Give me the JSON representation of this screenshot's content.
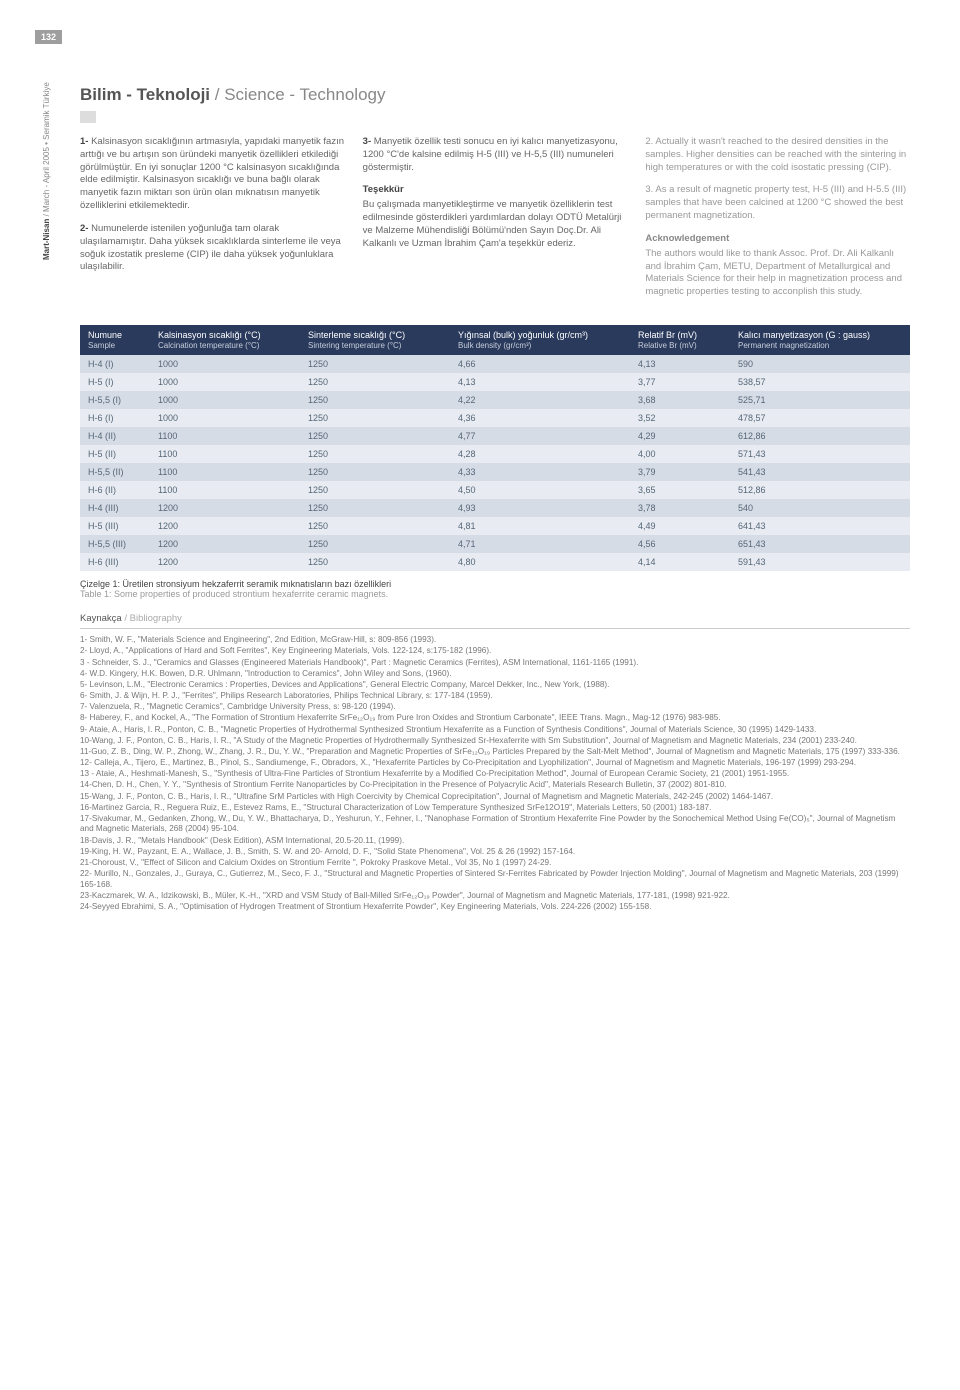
{
  "page_number": "132",
  "side_text_bold": "Mart-Nisan",
  "side_text_rest": " / March - April 2005 • Seramik Türkiye",
  "section_title_bold": "Bilim - Teknoloji",
  "section_title_light": " / Science - Technology",
  "col1": {
    "p1_lead": "1- ",
    "p1": "Kalsinasyon sıcaklığının artmasıyla, yapıdaki manyetik fazın arttığı ve bu artışın son üründeki manyetik özellikleri etkilediği görülmüştür. En iyi sonuçlar 1200 °C kalsinasyon sıcaklığında elde edilmiştir. Kalsinasyon sıcaklığı ve buna bağlı olarak manyetik fazın miktarı son ürün olan mıknatısın manyetik özelliklerini etkilemektedir.",
    "p2_lead": "2- ",
    "p2": "Numunelerde istenilen yoğunluğa tam olarak ulaşılamamıştır. Daha yüksek sıcaklıklarda sinterleme ile veya soğuk izostatik presleme (CIP) ile daha yüksek yoğunluklara ulaşılabilir."
  },
  "col2": {
    "p1_lead": "3- ",
    "p1": "Manyetik özellik testi sonucu en iyi kalıcı manyetizasyonu, 1200 °C'de kalsine edilmiş H-5 (III) ve H-5,5 (III) numuneleri göstermiştir.",
    "h1": "Teşekkür",
    "p2": "Bu çalışmada manyetikleştirme ve manyetik özelliklerin test edilmesinde gösterdikleri yardımlardan dolayı ODTÜ Metalürji ve Malzeme Mühendisliği Bölümü'nden Sayın Doç.Dr. Ali Kalkanlı ve Uzman İbrahim Çam'a teşekkür ederiz."
  },
  "col3": {
    "p1_lead": "2. ",
    "p1": "Actually it wasn't reached to the desired densities in the samples. Higher densities can be reached with the sintering in high temperatures or with the cold isostatic pressing (CIP).",
    "p2_lead": "3. ",
    "p2": "As a result of magnetic property test, H-5 (III) and H-5.5 (III) samples that have been calcined at 1200 °C showed the best permanent magnetization.",
    "h1": "Acknowledgement",
    "p3": "The authors would like to thank Assoc. Prof. Dr. Ali Kalkanlı and İbrahim Çam, METU, Department of Metallurgical and Materials Science for their help in magnetization process and magnetic properties testing to acconplish this study."
  },
  "table": {
    "headers": [
      {
        "tr": "Numune",
        "en": "Sample"
      },
      {
        "tr": "Kalsinasyon sıcaklığı (°C)",
        "en": "Calcination temperature (°C)"
      },
      {
        "tr": "Sinterleme sıcaklığı (°C)",
        "en": "Sintering temperature (°C)"
      },
      {
        "tr": "Yığınsal (bulk) yoğunluk (gr/cm³)",
        "en": "Bulk density (gr/cm³)"
      },
      {
        "tr": "Relatif Br (mV)",
        "en": "Relative Br (mV)"
      },
      {
        "tr": "Kalıcı manyetizasyon (G : gauss)",
        "en": "Permanent magnetization"
      }
    ],
    "rows": [
      [
        "H-4 (I)",
        "1000",
        "1250",
        "4,66",
        "4,13",
        "590"
      ],
      [
        "H-5 (I)",
        "1000",
        "1250",
        "4,13",
        "3,77",
        "538,57"
      ],
      [
        "H-5,5 (I)",
        "1000",
        "1250",
        "4,22",
        "3,68",
        "525,71"
      ],
      [
        "H-6 (I)",
        "1000",
        "1250",
        "4,36",
        "3,52",
        "478,57"
      ],
      [
        "H-4 (II)",
        "1100",
        "1250",
        "4,77",
        "4,29",
        "612,86"
      ],
      [
        "H-5 (II)",
        "1100",
        "1250",
        "4,28",
        "4,00",
        "571,43"
      ],
      [
        "H-5,5 (II)",
        "1100",
        "1250",
        "4,33",
        "3,79",
        "541,43"
      ],
      [
        "H-6 (II)",
        "1100",
        "1250",
        "4,50",
        "3,65",
        "512,86"
      ],
      [
        "H-4 (III)",
        "1200",
        "1250",
        "4,93",
        "3,78",
        "540"
      ],
      [
        "H-5 (III)",
        "1200",
        "1250",
        "4,81",
        "4,49",
        "641,43"
      ],
      [
        "H-5,5 (III)",
        "1200",
        "1250",
        "4,71",
        "4,56",
        "651,43"
      ],
      [
        "H-6 (III)",
        "1200",
        "1250",
        "4,80",
        "4,14",
        "591,43"
      ]
    ],
    "col_widths": [
      "70px",
      "150px",
      "150px",
      "180px",
      "100px",
      "auto"
    ],
    "header_bg": "#2a3a5c",
    "row_odd_bg": "#d6dce6",
    "row_even_bg": "#e8ecf2"
  },
  "caption_tr": "Çizelge 1: Üretilen stronsiyum hekzaferrit seramik mıknatısların bazı özellikleri",
  "caption_en": "Table 1: Some properties of produced strontium hexaferrite ceramic magnets.",
  "bib_head_tr": "Kaynakça",
  "bib_head_en": " / Bibliography",
  "refs": [
    "1- Smith, W. F., \"Materials Science and Engineering\", 2nd Edition, McGraw-Hill, s: 809-856 (1993).",
    "2- Lloyd, A., \"Applications of Hard and Soft Ferrites\", Key Engineering Materials, Vols. 122-124, s:175-182 (1996).",
    "3 - Schneider, S. J., \"Ceramics and Glasses (Engineered Materials Handbook)\", Part : Magnetic Ceramics (Ferrites), ASM International, 1161-1165 (1991).",
    "4- W.D. Kingery, H.K. Bowen, D.R. Uhlmann, \"Introduction to Ceramics\", John Wiley and Sons, (1960).",
    "5- Levinson, L.M., \"Electronic Ceramics : Properties, Devices and Applications\", General Electric Company, Marcel Dekker, Inc., New York, (1988).",
    "6- Smith, J. & Wijn, H. P. J., \"Ferrites\", Philips Research Laboratories, Philips Technical Library, s: 177-184 (1959).",
    "7- Valenzuela, R., \"Magnetic Ceramics\", Cambridge University Press, s: 98-120 (1994).",
    "8- Haberey, F., and Kockel, A., \"The Formation of Strontium Hexaferrite SrFe₁₂O₁₉ from Pure Iron Oxides and Strontium Carbonate\", IEEE Trans. Magn., Mag-12 (1976) 983-985.",
    "9- Ataie, A., Haris, I. R., Ponton, C. B., \"Magnetic Properties of Hydrothermal Synthesized Strontium Hexaferrite as a Function of Synthesis Conditions\", Journal of Materials Science, 30 (1995) 1429-1433.",
    "10-Wang, J. F., Ponton, C. B., Haris, I. R., \"A Study of the Magnetic Properties of Hydrothermally Synthesized Sr-Hexaferrite with Sm Substitution\", Journal of Magnetism and Magnetic Materials, 234 (2001) 233-240.",
    "11-Guo, Z. B., Ding, W. P., Zhong, W., Zhang, J. R., Du, Y. W., \"Preparation and Magnetic Properties of SrFe₁₂O₁₉ Particles Prepared by the Salt-Melt Method\", Journal of Magnetism and Magnetic Materials, 175 (1997) 333-336.",
    "12- Calleja, A., Tijero, E., Martinez, B., Pinol, S., Sandiumenge, F., Obradors, X., \"Hexaferrite Particles by Co-Precipitation and Lyophilization\", Journal of Magnetism and Magnetic Materials, 196-197 (1999) 293-294.",
    "13 - Ataie, A., Heshmati-Manesh, S., \"Synthesis of Ultra-Fine Particles of Strontium Hexaferrite by a Modified Co-Precipitation Method\", Journal of European Ceramic Society, 21 (2001) 1951-1955.",
    "14-Chen, D. H., Chen, Y. Y., \"Synthesis of Strontium Ferrite Nanoparticles by Co-Precipitation in the Presence of Polyacrylic Acid\", Materials Research Bulletin, 37 (2002) 801-810.",
    "15-Wang, J. F., Ponton, C. B., Haris, I. R., \"Ultrafine SrM Particles with High Coercivity by Chemical Coprecipitation\", Journal of Magnetism and Magnetic Materials, 242-245 (2002) 1464-1467.",
    "16-Martinez Garcia, R., Reguera Ruiz, E., Estevez Rams, E., \"Structural Characterization of Low Temperature Synthesized SrFe12O19\", Materials Letters, 50 (2001) 183-187.",
    "17-Sivakumar, M., Gedanken, Zhong, W., Du, Y. W., Bhattacharya, D., Yeshurun, Y., Fehner, I., \"Nanophase Formation of Strontium Hexaferrite Fine Powder by the Sonochemical Method Using Fe(CO)₅\", Journal of Magnetism and Magnetic Materials, 268 (2004) 95-104.",
    "18-Davis, J. R., \"Metals Handbook\" (Desk Edition), ASM International, 20.5-20.11, (1999).",
    "19-King, H. W., Payzant, E. A., Wallace, J. B., Smith, S. W. and 20- Arnold, D. F., \"Solid State Phenomena\", Vol. 25 & 26 (1992) 157-164.",
    "21-Choroust, V., \"Effect of Silicon and Calcium Oxides on Strontium Ferrite \", Pokroky Praskove Metal., Vol 35, No 1 (1997) 24-29.",
    "22- Murillo, N., Gonzales, J., Guraya, C., Gutierrez, M., Seco, F. J., \"Structural and Magnetic Properties of Sintered Sr-Ferrites Fabricated by Powder Injection Molding\", Journal of Magnetism and Magnetic Materials, 203 (1999) 165-168.",
    "23-Kaczmarek, W. A., Idzikowski, B., Müler, K.-H., \"XRD and VSM Study of Ball-Milled SrFe₁₂O₁₉ Powder\", Journal of Magnetism and Magnetic Materials, 177-181, (1998) 921-922.",
    "24-Seyyed Ebrahimi, S. A., \"Optimisation of Hydrogen Treatment of Strontium Hexaferrite Powder\", Key Engineering Materials, Vols. 224-226 (2002) 155-158."
  ]
}
